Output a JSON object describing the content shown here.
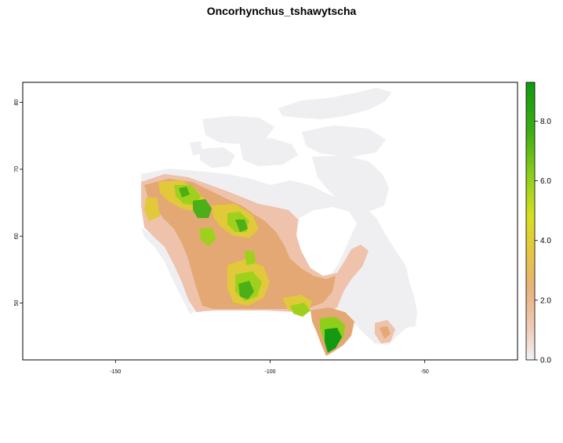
{
  "title": "Oncorhynchus_tshawytscha",
  "map": {
    "x_ticks": [
      "-150",
      "-100",
      "-50"
    ],
    "y_ticks": [
      "50",
      "60",
      "70",
      "80"
    ],
    "x_range": [
      -180,
      -20
    ],
    "y_range": [
      41.5,
      83
    ]
  },
  "legend": {
    "ticks": [
      "0.0",
      "2.0",
      "4.0",
      "6.0",
      "8.0"
    ],
    "range": [
      0,
      9.3
    ],
    "colors": [
      "#f2f2f2",
      "#eec9b5",
      "#e8b27a",
      "#e4c83c",
      "#d4e01e",
      "#8fcf1a",
      "#3fad14",
      "#0f9a10"
    ]
  }
}
